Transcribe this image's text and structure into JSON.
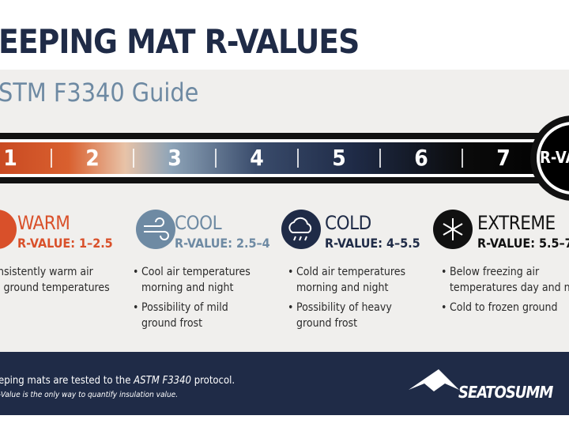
{
  "header": {
    "title": "EEPING MAT R-VALUES",
    "subtitle": "STM F3340 Guide"
  },
  "scale": {
    "numbers": [
      1,
      2,
      3,
      4,
      5,
      6,
      7
    ],
    "end_label": "R-VA"
  },
  "categories": [
    {
      "name": "WARM",
      "rvalue": "R-VALUE: 1–2.5",
      "color": "#d9502a",
      "bullets": [
        [
          "nsistently warm air",
          "l ground temperatures"
        ]
      ]
    },
    {
      "name": "COOL",
      "rvalue": "R-VALUE: 2.5–4",
      "color": "#6e8aa3",
      "bullets": [
        [
          "Cool air temperatures",
          "morning and night"
        ],
        [
          "Possibility of mild",
          "ground frost"
        ]
      ]
    },
    {
      "name": "COLD",
      "rvalue": "R-VALUE: 4–5.5",
      "color": "#1f2b47",
      "bullets": [
        [
          "Cold air temperatures",
          "morning and night"
        ],
        [
          "Possibility of heavy",
          "ground frost"
        ]
      ]
    },
    {
      "name": "EXTREME",
      "rvalue": "R-VALUE: 5.5–7",
      "color": "#111111",
      "bullets": [
        [
          "Below freezing air",
          "temperatures day and nigh"
        ],
        [
          "Cold to frozen ground"
        ]
      ]
    }
  ],
  "footer": {
    "line1": [
      "eping mats are tested to the ",
      "ASTM F3340",
      " protocol."
    ],
    "line2": "-Value is the only way to quantify insulation value.",
    "brand": "SEATOSUMM"
  }
}
